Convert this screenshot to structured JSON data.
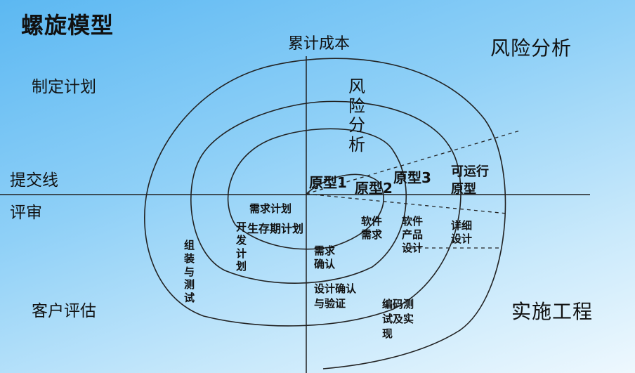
{
  "title": "螺旋模型",
  "axis": {
    "y_label": "累计成本"
  },
  "quadrants": {
    "top_right": "风险分析",
    "top_left": "制定计划",
    "bottom_left": "客户评估",
    "bottom_right": "实施工程"
  },
  "side": {
    "submit_line": "提交线",
    "review": "评审"
  },
  "risk_vertical": "风险分析",
  "prototypes": {
    "p1": "原型1",
    "p2": "原型2",
    "p3": "原型3",
    "runnable": "可运行原型"
  },
  "phases": {
    "requirements_plan": "需求计划",
    "lifecycle_plan": "生存期计划",
    "dev_plan": "开发计划",
    "integration_test": "组装与测试",
    "software_requirements": "软件需求",
    "requirements_confirm": "需求确认",
    "product_design": "软件产品设计",
    "detailed_design": "详细设计",
    "design_confirm": "设计确认",
    "and_verify": "与验证",
    "code_test_1": "编码测",
    "code_test_2": "试及实",
    "code_test_3": "现"
  }
}
